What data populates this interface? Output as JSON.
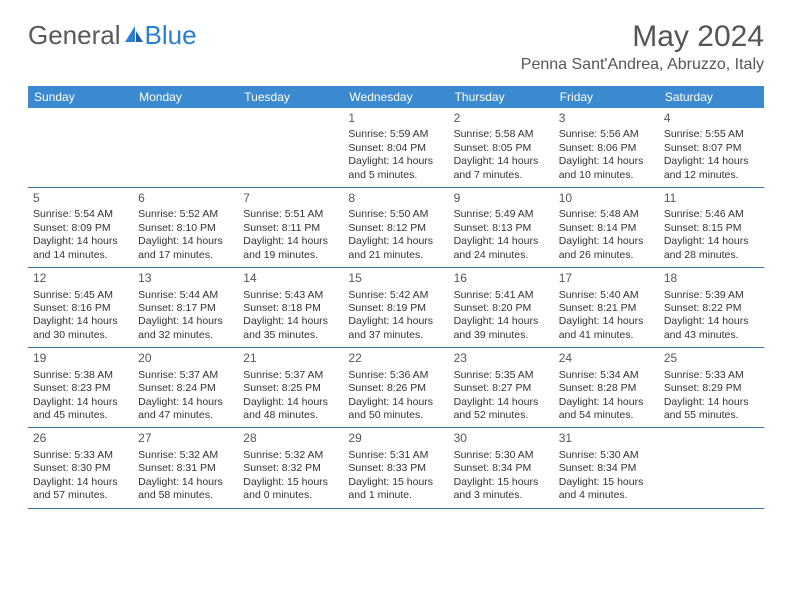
{
  "logo": {
    "text1": "General",
    "text2": "Blue"
  },
  "title": "May 2024",
  "location": "Penna Sant'Andrea, Abruzzo, Italy",
  "colors": {
    "header_bg": "#3b8ad0",
    "header_text": "#ffffff",
    "border": "#3b6ea8",
    "body_text": "#333333",
    "title_text": "#555555"
  },
  "day_names": [
    "Sunday",
    "Monday",
    "Tuesday",
    "Wednesday",
    "Thursday",
    "Friday",
    "Saturday"
  ],
  "weeks": [
    [
      {
        "n": "",
        "sr": "",
        "ss": "",
        "dl": ""
      },
      {
        "n": "",
        "sr": "",
        "ss": "",
        "dl": ""
      },
      {
        "n": "",
        "sr": "",
        "ss": "",
        "dl": ""
      },
      {
        "n": "1",
        "sr": "Sunrise: 5:59 AM",
        "ss": "Sunset: 8:04 PM",
        "dl": "Daylight: 14 hours and 5 minutes."
      },
      {
        "n": "2",
        "sr": "Sunrise: 5:58 AM",
        "ss": "Sunset: 8:05 PM",
        "dl": "Daylight: 14 hours and 7 minutes."
      },
      {
        "n": "3",
        "sr": "Sunrise: 5:56 AM",
        "ss": "Sunset: 8:06 PM",
        "dl": "Daylight: 14 hours and 10 minutes."
      },
      {
        "n": "4",
        "sr": "Sunrise: 5:55 AM",
        "ss": "Sunset: 8:07 PM",
        "dl": "Daylight: 14 hours and 12 minutes."
      }
    ],
    [
      {
        "n": "5",
        "sr": "Sunrise: 5:54 AM",
        "ss": "Sunset: 8:09 PM",
        "dl": "Daylight: 14 hours and 14 minutes."
      },
      {
        "n": "6",
        "sr": "Sunrise: 5:52 AM",
        "ss": "Sunset: 8:10 PM",
        "dl": "Daylight: 14 hours and 17 minutes."
      },
      {
        "n": "7",
        "sr": "Sunrise: 5:51 AM",
        "ss": "Sunset: 8:11 PM",
        "dl": "Daylight: 14 hours and 19 minutes."
      },
      {
        "n": "8",
        "sr": "Sunrise: 5:50 AM",
        "ss": "Sunset: 8:12 PM",
        "dl": "Daylight: 14 hours and 21 minutes."
      },
      {
        "n": "9",
        "sr": "Sunrise: 5:49 AM",
        "ss": "Sunset: 8:13 PM",
        "dl": "Daylight: 14 hours and 24 minutes."
      },
      {
        "n": "10",
        "sr": "Sunrise: 5:48 AM",
        "ss": "Sunset: 8:14 PM",
        "dl": "Daylight: 14 hours and 26 minutes."
      },
      {
        "n": "11",
        "sr": "Sunrise: 5:46 AM",
        "ss": "Sunset: 8:15 PM",
        "dl": "Daylight: 14 hours and 28 minutes."
      }
    ],
    [
      {
        "n": "12",
        "sr": "Sunrise: 5:45 AM",
        "ss": "Sunset: 8:16 PM",
        "dl": "Daylight: 14 hours and 30 minutes."
      },
      {
        "n": "13",
        "sr": "Sunrise: 5:44 AM",
        "ss": "Sunset: 8:17 PM",
        "dl": "Daylight: 14 hours and 32 minutes."
      },
      {
        "n": "14",
        "sr": "Sunrise: 5:43 AM",
        "ss": "Sunset: 8:18 PM",
        "dl": "Daylight: 14 hours and 35 minutes."
      },
      {
        "n": "15",
        "sr": "Sunrise: 5:42 AM",
        "ss": "Sunset: 8:19 PM",
        "dl": "Daylight: 14 hours and 37 minutes."
      },
      {
        "n": "16",
        "sr": "Sunrise: 5:41 AM",
        "ss": "Sunset: 8:20 PM",
        "dl": "Daylight: 14 hours and 39 minutes."
      },
      {
        "n": "17",
        "sr": "Sunrise: 5:40 AM",
        "ss": "Sunset: 8:21 PM",
        "dl": "Daylight: 14 hours and 41 minutes."
      },
      {
        "n": "18",
        "sr": "Sunrise: 5:39 AM",
        "ss": "Sunset: 8:22 PM",
        "dl": "Daylight: 14 hours and 43 minutes."
      }
    ],
    [
      {
        "n": "19",
        "sr": "Sunrise: 5:38 AM",
        "ss": "Sunset: 8:23 PM",
        "dl": "Daylight: 14 hours and 45 minutes."
      },
      {
        "n": "20",
        "sr": "Sunrise: 5:37 AM",
        "ss": "Sunset: 8:24 PM",
        "dl": "Daylight: 14 hours and 47 minutes."
      },
      {
        "n": "21",
        "sr": "Sunrise: 5:37 AM",
        "ss": "Sunset: 8:25 PM",
        "dl": "Daylight: 14 hours and 48 minutes."
      },
      {
        "n": "22",
        "sr": "Sunrise: 5:36 AM",
        "ss": "Sunset: 8:26 PM",
        "dl": "Daylight: 14 hours and 50 minutes."
      },
      {
        "n": "23",
        "sr": "Sunrise: 5:35 AM",
        "ss": "Sunset: 8:27 PM",
        "dl": "Daylight: 14 hours and 52 minutes."
      },
      {
        "n": "24",
        "sr": "Sunrise: 5:34 AM",
        "ss": "Sunset: 8:28 PM",
        "dl": "Daylight: 14 hours and 54 minutes."
      },
      {
        "n": "25",
        "sr": "Sunrise: 5:33 AM",
        "ss": "Sunset: 8:29 PM",
        "dl": "Daylight: 14 hours and 55 minutes."
      }
    ],
    [
      {
        "n": "26",
        "sr": "Sunrise: 5:33 AM",
        "ss": "Sunset: 8:30 PM",
        "dl": "Daylight: 14 hours and 57 minutes."
      },
      {
        "n": "27",
        "sr": "Sunrise: 5:32 AM",
        "ss": "Sunset: 8:31 PM",
        "dl": "Daylight: 14 hours and 58 minutes."
      },
      {
        "n": "28",
        "sr": "Sunrise: 5:32 AM",
        "ss": "Sunset: 8:32 PM",
        "dl": "Daylight: 15 hours and 0 minutes."
      },
      {
        "n": "29",
        "sr": "Sunrise: 5:31 AM",
        "ss": "Sunset: 8:33 PM",
        "dl": "Daylight: 15 hours and 1 minute."
      },
      {
        "n": "30",
        "sr": "Sunrise: 5:30 AM",
        "ss": "Sunset: 8:34 PM",
        "dl": "Daylight: 15 hours and 3 minutes."
      },
      {
        "n": "31",
        "sr": "Sunrise: 5:30 AM",
        "ss": "Sunset: 8:34 PM",
        "dl": "Daylight: 15 hours and 4 minutes."
      },
      {
        "n": "",
        "sr": "",
        "ss": "",
        "dl": ""
      }
    ]
  ]
}
